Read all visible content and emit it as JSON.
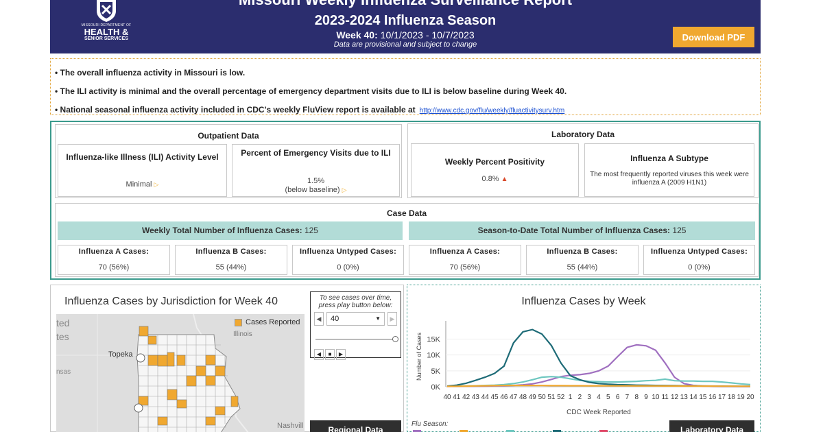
{
  "header": {
    "title": "Missouri Weekly Influenza Surveillance Report",
    "season": "2023-2024 Influenza Season",
    "week_label": "Week 40:",
    "week_range": "10/1/2023 - 10/7/2023",
    "note": "Data are provisional and subject to change",
    "download_label": "Download PDF",
    "logo": {
      "line1": "MISSOURI DEPARTMENT OF",
      "line2": "HEALTH &",
      "line3": "SENIOR SERVICES"
    }
  },
  "summary": {
    "line1": "• The overall influenza activity in Missouri is low.",
    "line2": "• The ILI activity is minimal and the overall percentage of emergency department visits due to ILI is below baseline during Week 40.",
    "line3": "• National seasonal influenza activity included in CDC's weekly FluView report is available at",
    "link": "http://www.cdc.gov/flu/weekly/fluactivitysurv.htm"
  },
  "outpatient": {
    "title": "Outpatient Data",
    "ili_title": "Influenza-like Illness (ILI) Activity Level",
    "ili_value": "Minimal",
    "ed_title": "Percent of Emergency Visits due to ILI",
    "ed_value": "1.5%",
    "ed_note": "(below baseline)"
  },
  "laboratory": {
    "title": "Laboratory Data",
    "pos_title": "Weekly Percent Positivity",
    "pos_value": "0.8%",
    "subtype_title": "Influenza A Subtype",
    "subtype_desc": "The most frequently reported viruses this week were influenza A (2009 H1N1)"
  },
  "cases": {
    "title": "Case Data",
    "weekly_label": "Weekly Total Number of Influenza Cases:",
    "weekly_total": "125",
    "season_label": "Season-to-Date Total Number of Influenza Cases:",
    "season_total": "125",
    "weekly": [
      {
        "label": "Influenza A Cases:",
        "value": "70 (56%)"
      },
      {
        "label": "Influenza B Cases:",
        "value": "55 (44%)"
      },
      {
        "label": "Influenza Untyped Cases:",
        "value": "0 (0%)"
      }
    ],
    "season": [
      {
        "label": "Influenza A Cases:",
        "value": "70 (56%)"
      },
      {
        "label": "Influenza B Cases:",
        "value": "55 (44%)"
      },
      {
        "label": "Influenza Untyped Cases:",
        "value": "0 (0%)"
      }
    ]
  },
  "map": {
    "title": "Influenza Cases by Jurisdiction for Week 40",
    "legend": "Cases Reported",
    "labels": {
      "illinois": "Illinois",
      "topeka": "Topeka",
      "nashville": "Nashvill",
      "ted": "ted",
      "tes": "tes",
      "nsas": "nsas"
    },
    "play_note": "To see cases over time, press play button below:",
    "week_value": "40",
    "regional_button": "Regional Data"
  },
  "chart_panel": {
    "flu_season_label": "Flu Season:",
    "lab_button": "Laboratory Data"
  },
  "colors": {
    "header_bg": "#2b2d6e",
    "accent": "#f0a830",
    "teal": "#3a9a8c",
    "bar_bg": "#b2dcd7"
  },
  "chart_data": {
    "type": "line",
    "title": "Influenza Cases by Week",
    "xlabel": "CDC Week Reported",
    "ylabel": "Number of Cases",
    "ylim": [
      0,
      19000
    ],
    "yticks": [
      0,
      5000,
      10000,
      15000
    ],
    "ytick_labels": [
      "0K",
      "5K",
      "10K",
      "15K"
    ],
    "x": [
      "40",
      "41",
      "42",
      "43",
      "44",
      "45",
      "46",
      "47",
      "48",
      "49",
      "50",
      "51",
      "52",
      "1",
      "2",
      "3",
      "4",
      "5",
      "6",
      "7",
      "8",
      "9",
      "10",
      "11",
      "12",
      "13",
      "14",
      "15",
      "16",
      "17",
      "18",
      "19",
      "20"
    ],
    "series": [
      {
        "name": "purple",
        "color": "#a070c0",
        "values": [
          100,
          100,
          120,
          150,
          200,
          250,
          300,
          400,
          600,
          900,
          1500,
          2300,
          3200,
          3600,
          3800,
          4200,
          5000,
          6500,
          9500,
          12400,
          13200,
          12900,
          11500,
          7500,
          3000,
          1000,
          400,
          200,
          100,
          80,
          60,
          50,
          40
        ]
      },
      {
        "name": "teal-light",
        "color": "#6ec7c0",
        "values": [
          150,
          200,
          250,
          300,
          400,
          500,
          700,
          1000,
          1500,
          2200,
          3000,
          3200,
          3000,
          2500,
          2000,
          1700,
          1600,
          1500,
          1500,
          1600,
          1700,
          1900,
          2000,
          2400,
          1900,
          1800,
          1800,
          1700,
          1700,
          1500,
          1200,
          900,
          700
        ]
      },
      {
        "name": "dark-teal",
        "color": "#1e6b77",
        "values": [
          200,
          500,
          1100,
          2000,
          3000,
          4200,
          6500,
          13800,
          17300,
          18000,
          16600,
          13000,
          7500,
          3500,
          2200,
          1400,
          1000,
          800,
          650,
          600,
          500,
          450,
          420,
          380,
          350,
          300,
          280,
          250,
          220,
          200,
          180,
          150,
          120
        ]
      },
      {
        "name": "orange",
        "color": "#f0a830",
        "values": [
          100,
          150,
          200,
          250,
          300,
          350,
          380,
          400,
          400,
          400,
          380,
          350,
          350,
          330,
          320,
          300,
          300,
          290,
          280,
          270,
          260,
          250,
          250,
          240,
          230,
          220,
          210,
          200,
          190,
          180,
          170,
          160,
          150
        ]
      }
    ],
    "legend_colors": [
      "#a070c0",
      "#f0a830",
      "#6ec7c0",
      "#1e6b77",
      "#e04a6a"
    ]
  }
}
